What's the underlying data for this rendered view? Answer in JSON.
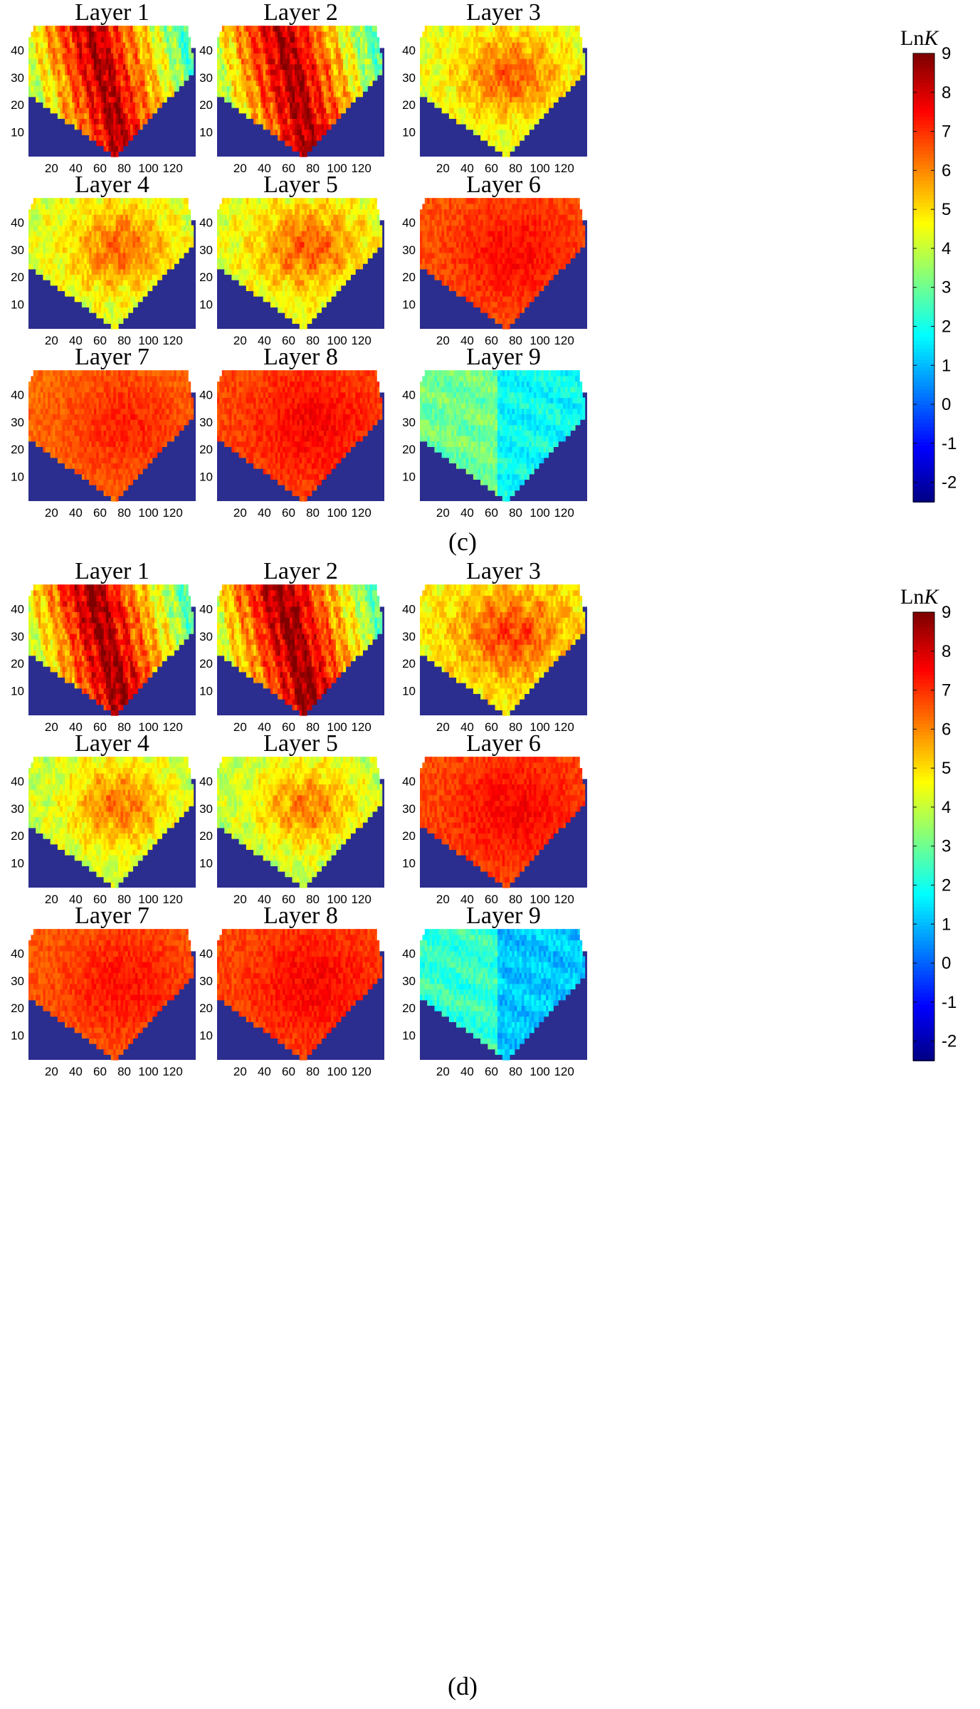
{
  "figure": {
    "panels": [
      {
        "caption": "(c)",
        "colorbar_label": "Ln",
        "colorbar_label_italic": "K",
        "maps": [
          {
            "title": "Layer 1",
            "avg": 7.2,
            "mode": "streak",
            "base": "yellow"
          },
          {
            "title": "Layer 2",
            "avg": 7.3,
            "mode": "streak",
            "base": "yellow"
          },
          {
            "title": "Layer 3",
            "avg": 4.9,
            "mode": "patch",
            "base": "lightgreen"
          },
          {
            "title": "Layer 4",
            "avg": 4.8,
            "mode": "patch",
            "base": "lightgreen"
          },
          {
            "title": "Layer 5",
            "avg": 4.9,
            "mode": "patch",
            "base": "lightgreen"
          },
          {
            "title": "Layer 6",
            "avg": 6.9,
            "mode": "uniform",
            "base": "orange"
          },
          {
            "title": "Layer 7",
            "avg": 6.6,
            "mode": "uniform",
            "base": "orange"
          },
          {
            "title": "Layer 8",
            "avg": 7.0,
            "mode": "uniform",
            "base": "orange"
          },
          {
            "title": "Layer 9",
            "avg": 2.3,
            "mode": "low",
            "base": "cyan"
          }
        ]
      },
      {
        "caption": "(d)",
        "colorbar_label": "Ln",
        "colorbar_label_italic": "K",
        "maps": [
          {
            "title": "Layer 1",
            "avg": 7.4,
            "mode": "streak",
            "base": "yellow"
          },
          {
            "title": "Layer 2",
            "avg": 7.5,
            "mode": "streak",
            "base": "yellow"
          },
          {
            "title": "Layer 3",
            "avg": 5.3,
            "mode": "patch",
            "base": "yellow"
          },
          {
            "title": "Layer 4",
            "avg": 4.6,
            "mode": "patch",
            "base": "lightgreen"
          },
          {
            "title": "Layer 5",
            "avg": 4.5,
            "mode": "patch",
            "base": "lightgreen"
          },
          {
            "title": "Layer 6",
            "avg": 7.0,
            "mode": "uniform",
            "base": "orange"
          },
          {
            "title": "Layer 7",
            "avg": 6.8,
            "mode": "uniform",
            "base": "orange"
          },
          {
            "title": "Layer 8",
            "avg": 7.0,
            "mode": "uniform",
            "base": "orange"
          },
          {
            "title": "Layer 9",
            "avg": 1.6,
            "mode": "low",
            "base": "cyan"
          }
        ]
      }
    ]
  },
  "chart_data": {
    "type": "heatmap",
    "x_ticks": [
      20,
      40,
      60,
      80,
      100,
      120
    ],
    "y_ticks": [
      10,
      20,
      30,
      40
    ],
    "x_range": [
      1,
      139
    ],
    "y_range": [
      1,
      48
    ],
    "colorbar_ticks": [
      9,
      8,
      7,
      6,
      5,
      4,
      3,
      2,
      1,
      0,
      -1,
      -2
    ],
    "colorbar_range": [
      -2.5,
      9
    ],
    "colormap": "jet",
    "inactive_color": "#2b2d8f",
    "notes_on_values": "Approximate dominant LnK per layer; cells outside the active domain shown as inactive"
  }
}
